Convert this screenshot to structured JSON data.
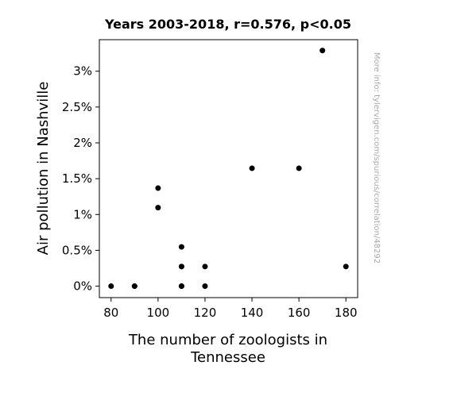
{
  "chart_data": {
    "type": "scatter",
    "title": "Years 2003-2018, r=0.576, p<0.05",
    "xlabel_lines": [
      "The number of zoologists in",
      "Tennessee"
    ],
    "ylabel": "Air pollution in Nashville",
    "watermark": "More info: tylervigen.com/spurious/correlation/48292",
    "xlim": [
      75,
      185
    ],
    "ylim": [
      -0.0016,
      0.0344
    ],
    "x_ticks": [
      80,
      100,
      120,
      140,
      160,
      180
    ],
    "x_tick_labels": [
      "80",
      "100",
      "120",
      "140",
      "160",
      "180"
    ],
    "y_ticks": [
      0,
      0.005,
      0.01,
      0.015,
      0.02,
      0.025,
      0.03
    ],
    "y_tick_labels": [
      "0%",
      "0.5%",
      "1%",
      "1.5%",
      "2%",
      "2.5%",
      "3%"
    ],
    "grid": false,
    "marker_color": "#000000",
    "points": [
      {
        "x": 80,
        "y": 0.0
      },
      {
        "x": 90,
        "y": 0.0
      },
      {
        "x": 100,
        "y": 0.01368
      },
      {
        "x": 100,
        "y": 0.01096
      },
      {
        "x": 110,
        "y": 0.00548
      },
      {
        "x": 110,
        "y": 0.00274
      },
      {
        "x": 110,
        "y": 0.0
      },
      {
        "x": 110,
        "y": 0.0
      },
      {
        "x": 110,
        "y": 0.00274
      },
      {
        "x": 120,
        "y": 0.00274
      },
      {
        "x": 120,
        "y": 0.0
      },
      {
        "x": 140,
        "y": 0.01645
      },
      {
        "x": 160,
        "y": 0.01645
      },
      {
        "x": 170,
        "y": 0.03289
      },
      {
        "x": 180,
        "y": 0.00274
      },
      {
        "x": 90,
        "y": 0.0
      }
    ]
  }
}
